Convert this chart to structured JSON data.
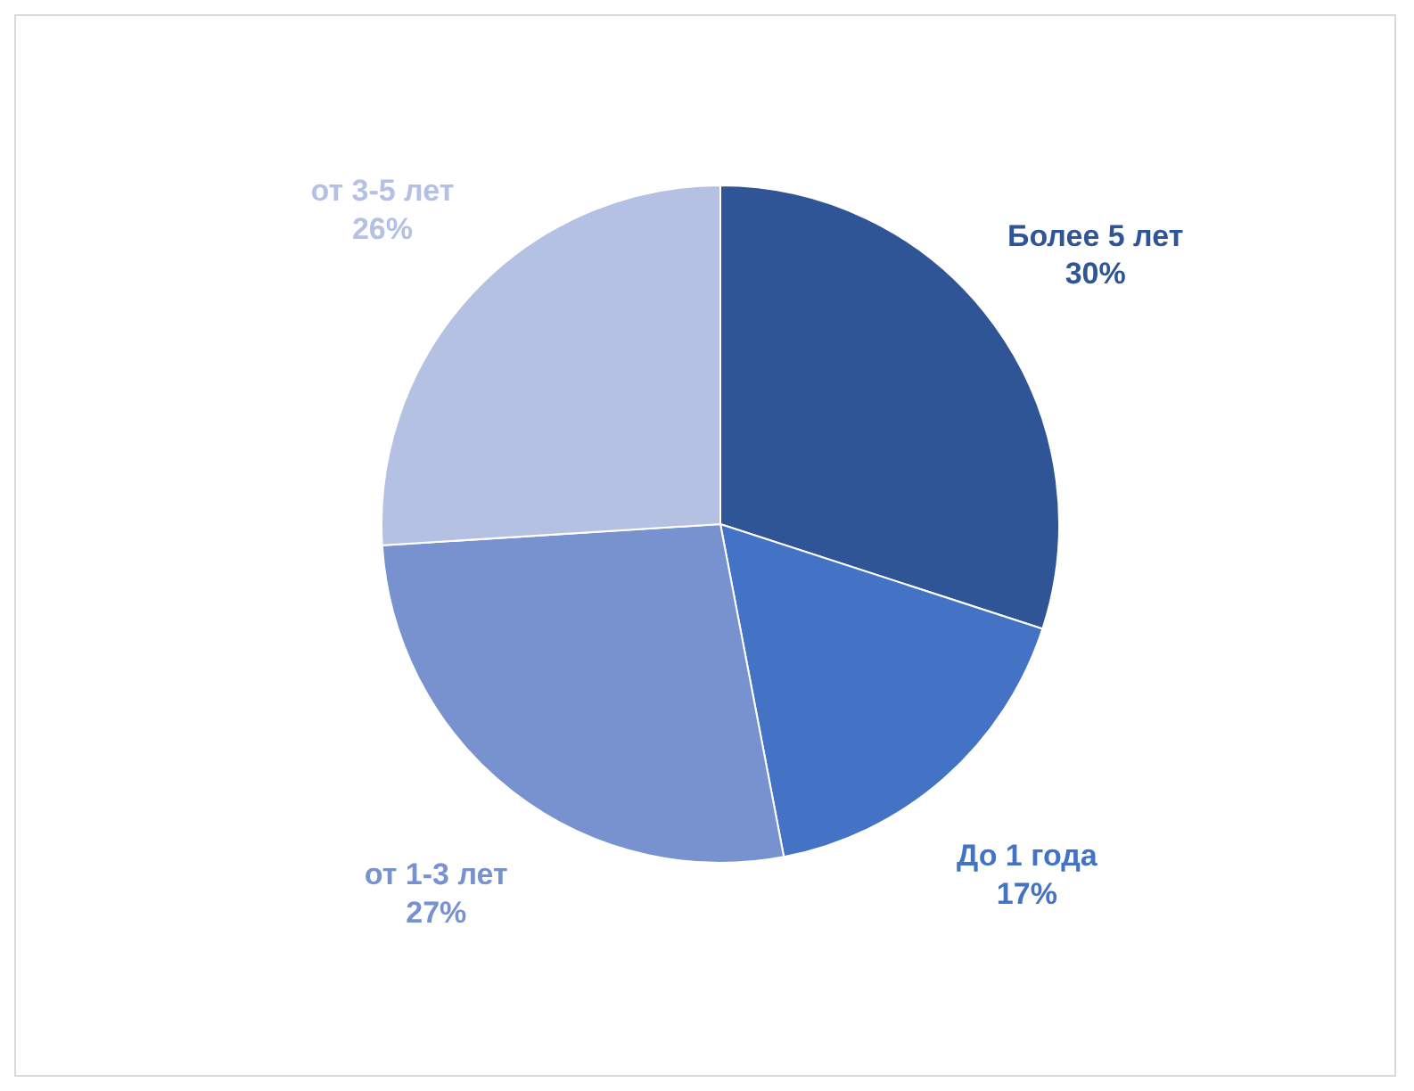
{
  "chart_data": {
    "type": "pie",
    "categories": [
      "Более 5 лет",
      "До 1 года",
      "от 1-3 лет",
      "от 3-5 лет"
    ],
    "values": [
      30,
      17,
      27,
      26
    ],
    "value_labels": [
      "30%",
      "17%",
      "27%",
      "26%"
    ],
    "colors": [
      "#2f5597",
      "#4472c4",
      "#7891cf",
      "#b4c1e2"
    ],
    "legend": false
  }
}
